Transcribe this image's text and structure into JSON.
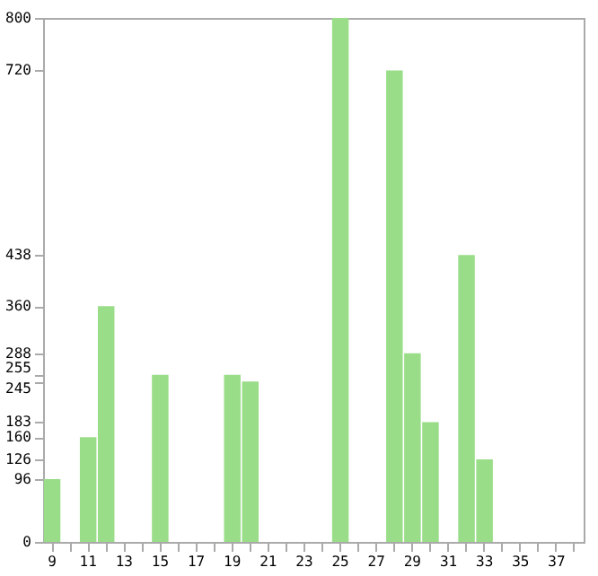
{
  "chart_data": {
    "type": "bar",
    "categories": [
      "9",
      null,
      "11",
      null,
      "13",
      null,
      "15",
      null,
      "17",
      null,
      "19",
      null,
      "21",
      null,
      "23",
      null,
      "25",
      null,
      "27",
      null,
      "29",
      null,
      "31",
      null,
      "33",
      null,
      "35",
      null,
      "37",
      null
    ],
    "values": [
      96,
      0,
      160,
      360,
      0,
      0,
      255,
      0,
      0,
      0,
      255,
      245,
      0,
      0,
      0,
      0,
      800,
      0,
      0,
      720,
      288,
      183,
      0,
      438,
      126,
      0,
      0,
      0,
      0,
      0
    ],
    "color": "#99dd88",
    "ylim": [
      0,
      800
    ],
    "yticks": [
      0,
      96,
      126,
      160,
      183,
      245,
      255,
      288,
      360,
      438,
      720,
      800
    ],
    "grid": false
  }
}
